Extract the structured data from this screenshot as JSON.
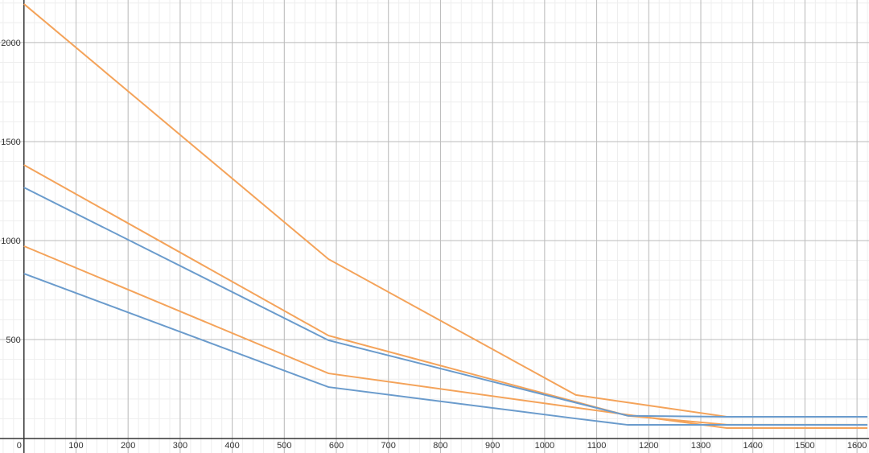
{
  "chart_data": {
    "type": "line",
    "x": [
      0,
      585,
      1060,
      1160,
      1350,
      1620
    ],
    "series": [
      {
        "color": "#f4a35a",
        "values": [
          2195,
          906,
          220,
          182,
          110,
          110
        ]
      },
      {
        "color": "#f4a35a",
        "values": [
          1382,
          520,
          185,
          115,
          70,
          70
        ]
      },
      {
        "color": "#f4a35a",
        "values": [
          972,
          329,
          156,
          120,
          53,
          53
        ]
      },
      {
        "color": "#6a9bcc",
        "values": [
          1268,
          496,
          181,
          115,
          110,
          110
        ]
      },
      {
        "color": "#6a9bcc",
        "values": [
          833,
          260,
          101,
          69,
          69,
          69
        ]
      }
    ],
    "xlim": [
      -46,
      1623
    ],
    "ylim": [
      -73,
      2215
    ],
    "xticks": [
      0,
      100,
      200,
      300,
      400,
      500,
      600,
      700,
      800,
      900,
      1000,
      1100,
      1200,
      1300,
      1400,
      1500,
      1600
    ],
    "yticks": [
      500,
      1000,
      1500,
      2000
    ],
    "grid": true
  }
}
